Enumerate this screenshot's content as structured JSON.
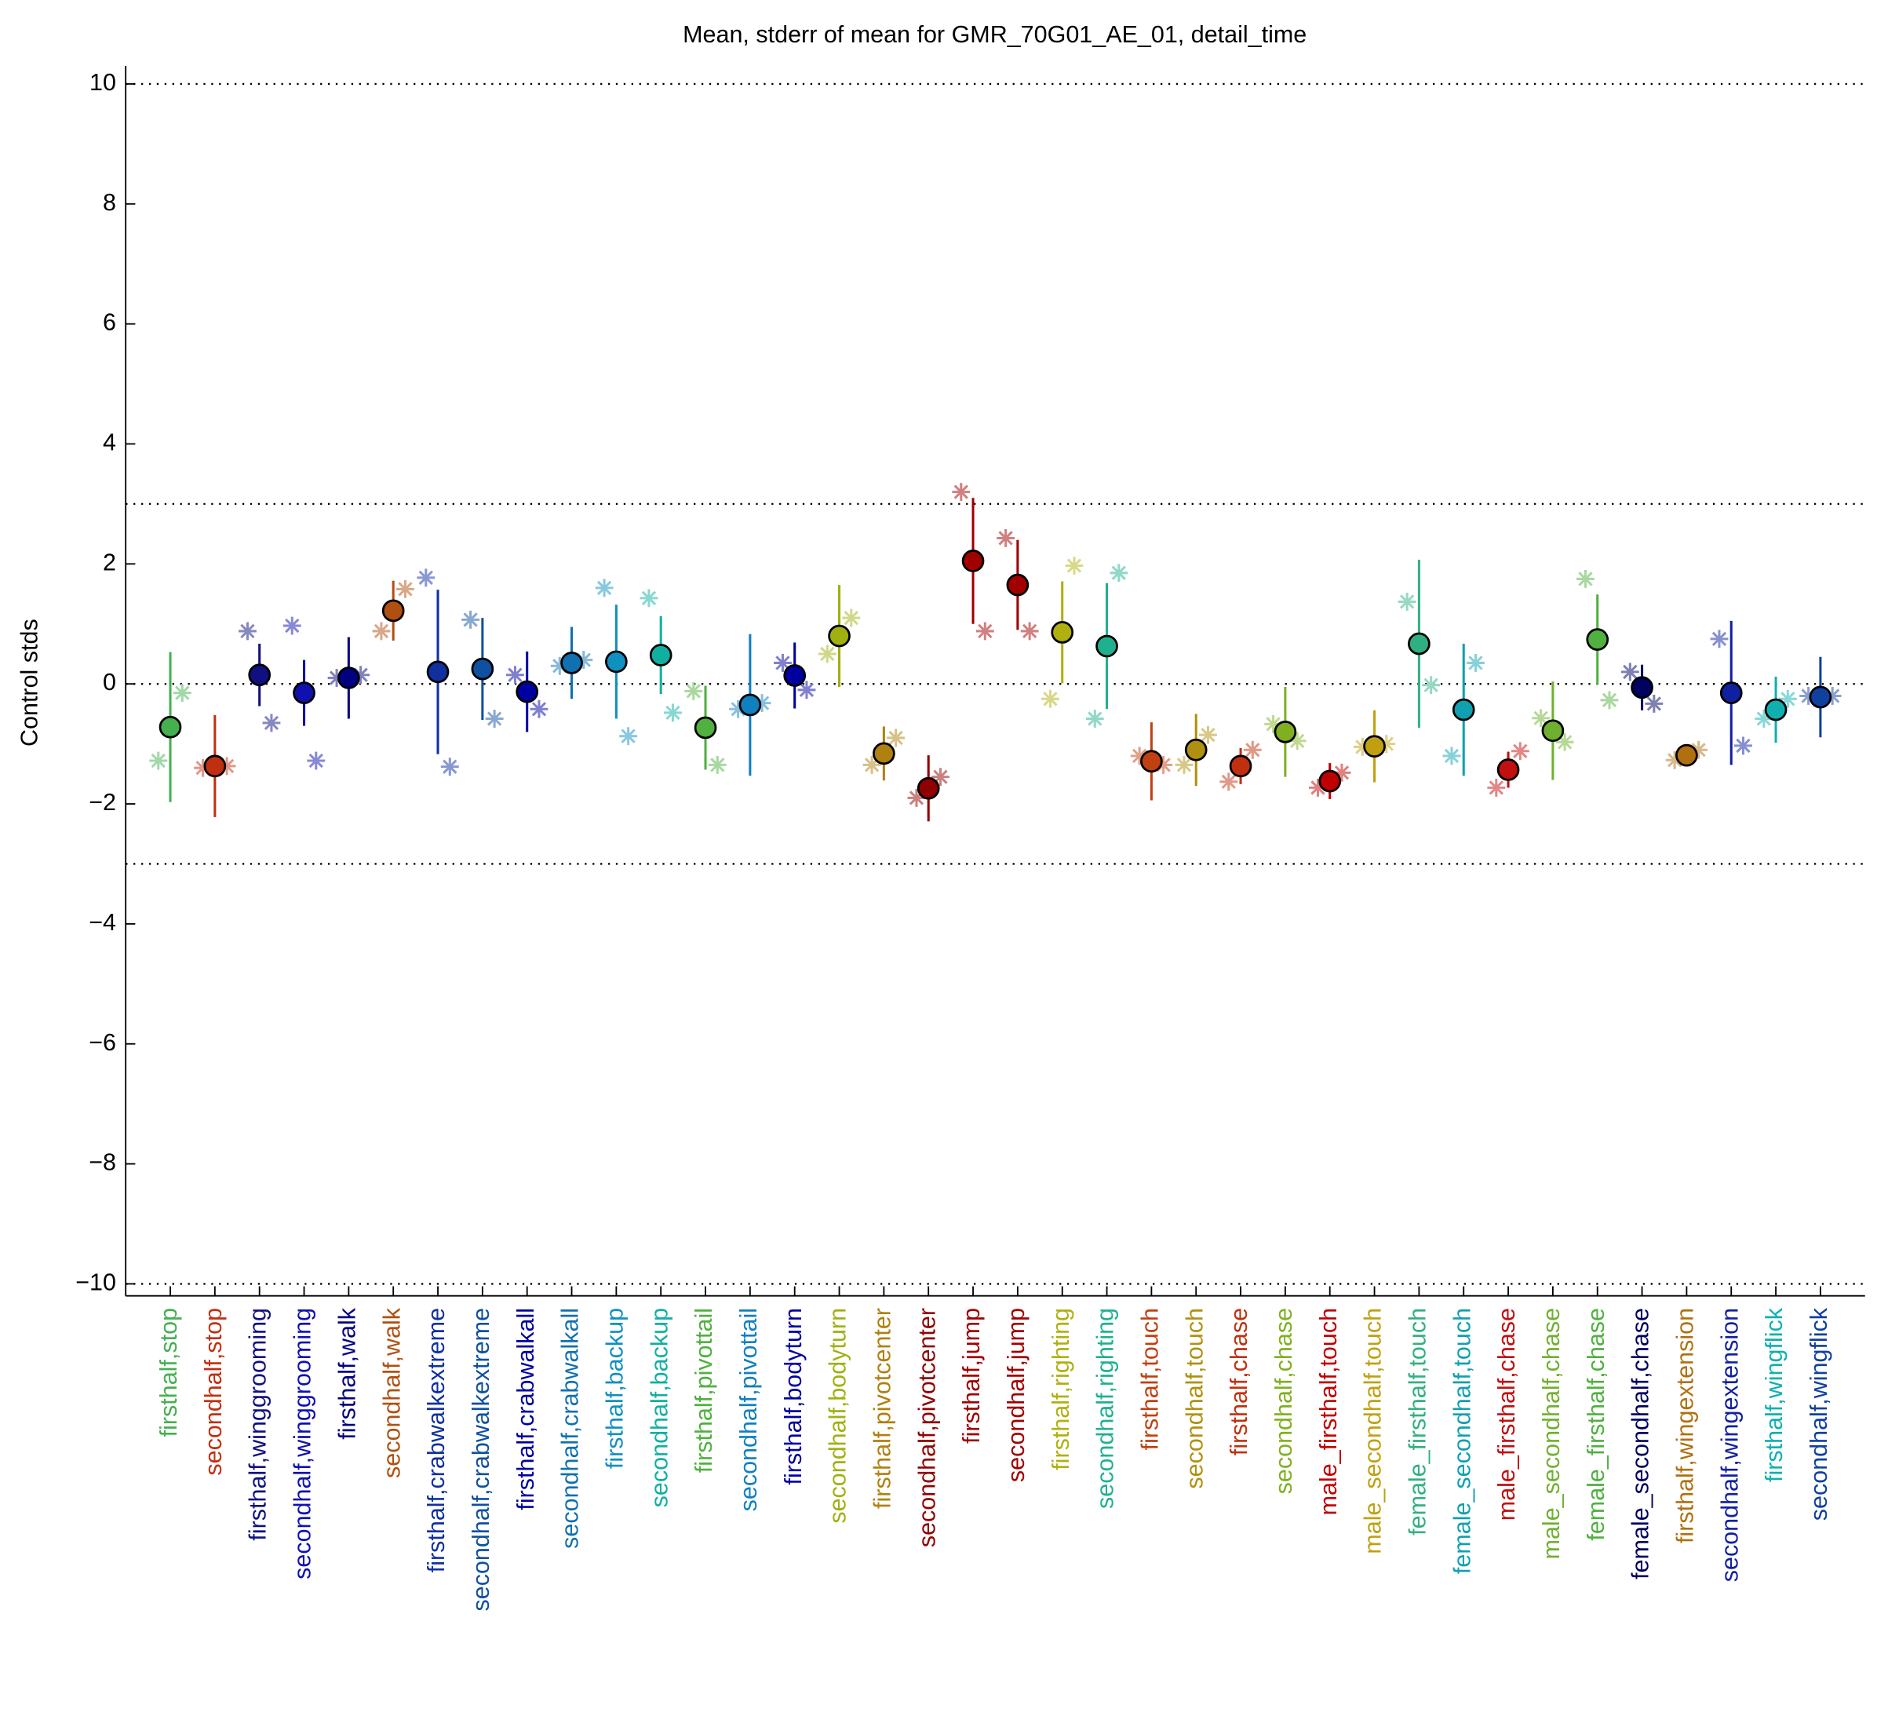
{
  "chart_data": {
    "type": "errorbar",
    "title": "Mean, stderr of mean for GMR_70G01_AE_01, detail_time",
    "ylabel": "Control stds",
    "ylim": [
      -10.2,
      10.3
    ],
    "yticks": [
      {
        "value": -10,
        "label": "−10"
      },
      {
        "value": -8,
        "label": "−8"
      },
      {
        "value": -6,
        "label": "−6"
      },
      {
        "value": -4,
        "label": "−4"
      },
      {
        "value": -2,
        "label": "−2"
      },
      0,
      2,
      4,
      6,
      8,
      10
    ],
    "hlines": [
      10,
      3,
      0,
      -3,
      -10
    ],
    "categories": [
      "firsthalf,stop",
      "secondhalf,stop",
      "firsthalf,winggrooming",
      "secondhalf,winggrooming",
      "firsthalf,walk",
      "secondhalf,walk",
      "firsthalf,crabwalkextreme",
      "secondhalf,crabwalkextreme",
      "firsthalf,crabwalkall",
      "secondhalf,crabwalkall",
      "firsthalf,backup",
      "secondhalf,backup",
      "firsthalf,pivottail",
      "secondhalf,pivottail",
      "firsthalf,bodyturn",
      "secondhalf,bodyturn",
      "firsthalf,pivotcenter",
      "secondhalf,pivotcenter",
      "firsthalf,jump",
      "secondhalf,jump",
      "firsthalf,righting",
      "secondhalf,righting",
      "firsthalf,touch",
      "secondhalf,touch",
      "firsthalf,chase",
      "secondhalf,chase",
      "male_firsthalf,touch",
      "male_secondhalf,touch",
      "female_firsthalf,touch",
      "female_secondhalf,touch",
      "male_firsthalf,chase",
      "male_secondhalf,chase",
      "female_firsthalf,chase",
      "female_secondhalf,chase",
      "firsthalf,wingextension",
      "secondhalf,wingextension",
      "firsthalf,wingflick",
      "secondhalf,wingflick"
    ],
    "colors": [
      "#44b050",
      "#c03010",
      "#101080",
      "#1010b0",
      "#000080",
      "#b05010",
      "#1030a0",
      "#1050a0",
      "#0000a0",
      "#1070b0",
      "#1090c0",
      "#10b0a0",
      "#50b040",
      "#1080c0",
      "#0000a0",
      "#a0b010",
      "#b08010",
      "#900000",
      "#a00000",
      "#a00000",
      "#b0b010",
      "#20b090",
      "#c04010",
      "#b09010",
      "#c03010",
      "#80b020",
      "#c00000",
      "#c0a010",
      "#30b080",
      "#10a0b0",
      "#c01010",
      "#70b030",
      "#50b040",
      "#000060",
      "#b07010",
      "#1020a0",
      "#10b0b0",
      "#1040a0"
    ],
    "means": [
      -0.72,
      -1.37,
      0.15,
      -0.15,
      0.1,
      1.22,
      0.2,
      0.25,
      -0.13,
      0.35,
      0.37,
      0.48,
      -0.73,
      -0.35,
      0.14,
      0.8,
      -1.16,
      -1.74,
      2.05,
      1.65,
      0.86,
      0.63,
      -1.29,
      -1.1,
      -1.37,
      -0.8,
      -1.62,
      -1.04,
      0.67,
      -0.43,
      -1.43,
      -0.78,
      0.74,
      -0.06,
      -1.19,
      -0.15,
      -0.43,
      -0.22
    ],
    "errors": [
      1.25,
      0.85,
      0.52,
      0.55,
      0.68,
      0.5,
      1.37,
      0.85,
      0.67,
      0.6,
      0.95,
      0.65,
      0.7,
      1.18,
      0.55,
      0.85,
      0.45,
      0.55,
      1.05,
      0.75,
      0.85,
      1.05,
      0.65,
      0.6,
      0.3,
      0.75,
      0.3,
      0.6,
      1.4,
      1.1,
      0.3,
      0.82,
      0.75,
      0.38,
      0.12,
      1.2,
      0.55,
      0.67
    ],
    "left_points": [
      -1.28,
      -1.4,
      0.88,
      0.97,
      0.1,
      0.88,
      1.77,
      1.07,
      0.15,
      0.3,
      1.6,
      1.43,
      -0.12,
      -0.42,
      0.35,
      0.5,
      -1.35,
      -1.9,
      3.2,
      2.43,
      -0.25,
      -0.58,
      -1.2,
      -1.35,
      -1.63,
      -0.67,
      -1.73,
      -1.05,
      1.37,
      -1.2,
      -1.73,
      -0.57,
      1.75,
      0.2,
      -1.27,
      0.75,
      -0.58,
      -0.2
    ],
    "right_points": [
      -0.15,
      -1.37,
      -0.65,
      -1.28,
      0.15,
      1.58,
      -1.38,
      -0.58,
      -0.42,
      0.4,
      -0.87,
      -0.48,
      -1.35,
      -0.32,
      -0.1,
      1.1,
      -0.9,
      -1.55,
      0.88,
      0.88,
      1.97,
      1.85,
      -1.35,
      -0.85,
      -1.1,
      -0.95,
      -1.48,
      -1.0,
      -0.02,
      0.35,
      -1.12,
      -0.97,
      -0.27,
      -0.33,
      -1.1,
      -1.03,
      -0.25,
      -0.2
    ]
  }
}
